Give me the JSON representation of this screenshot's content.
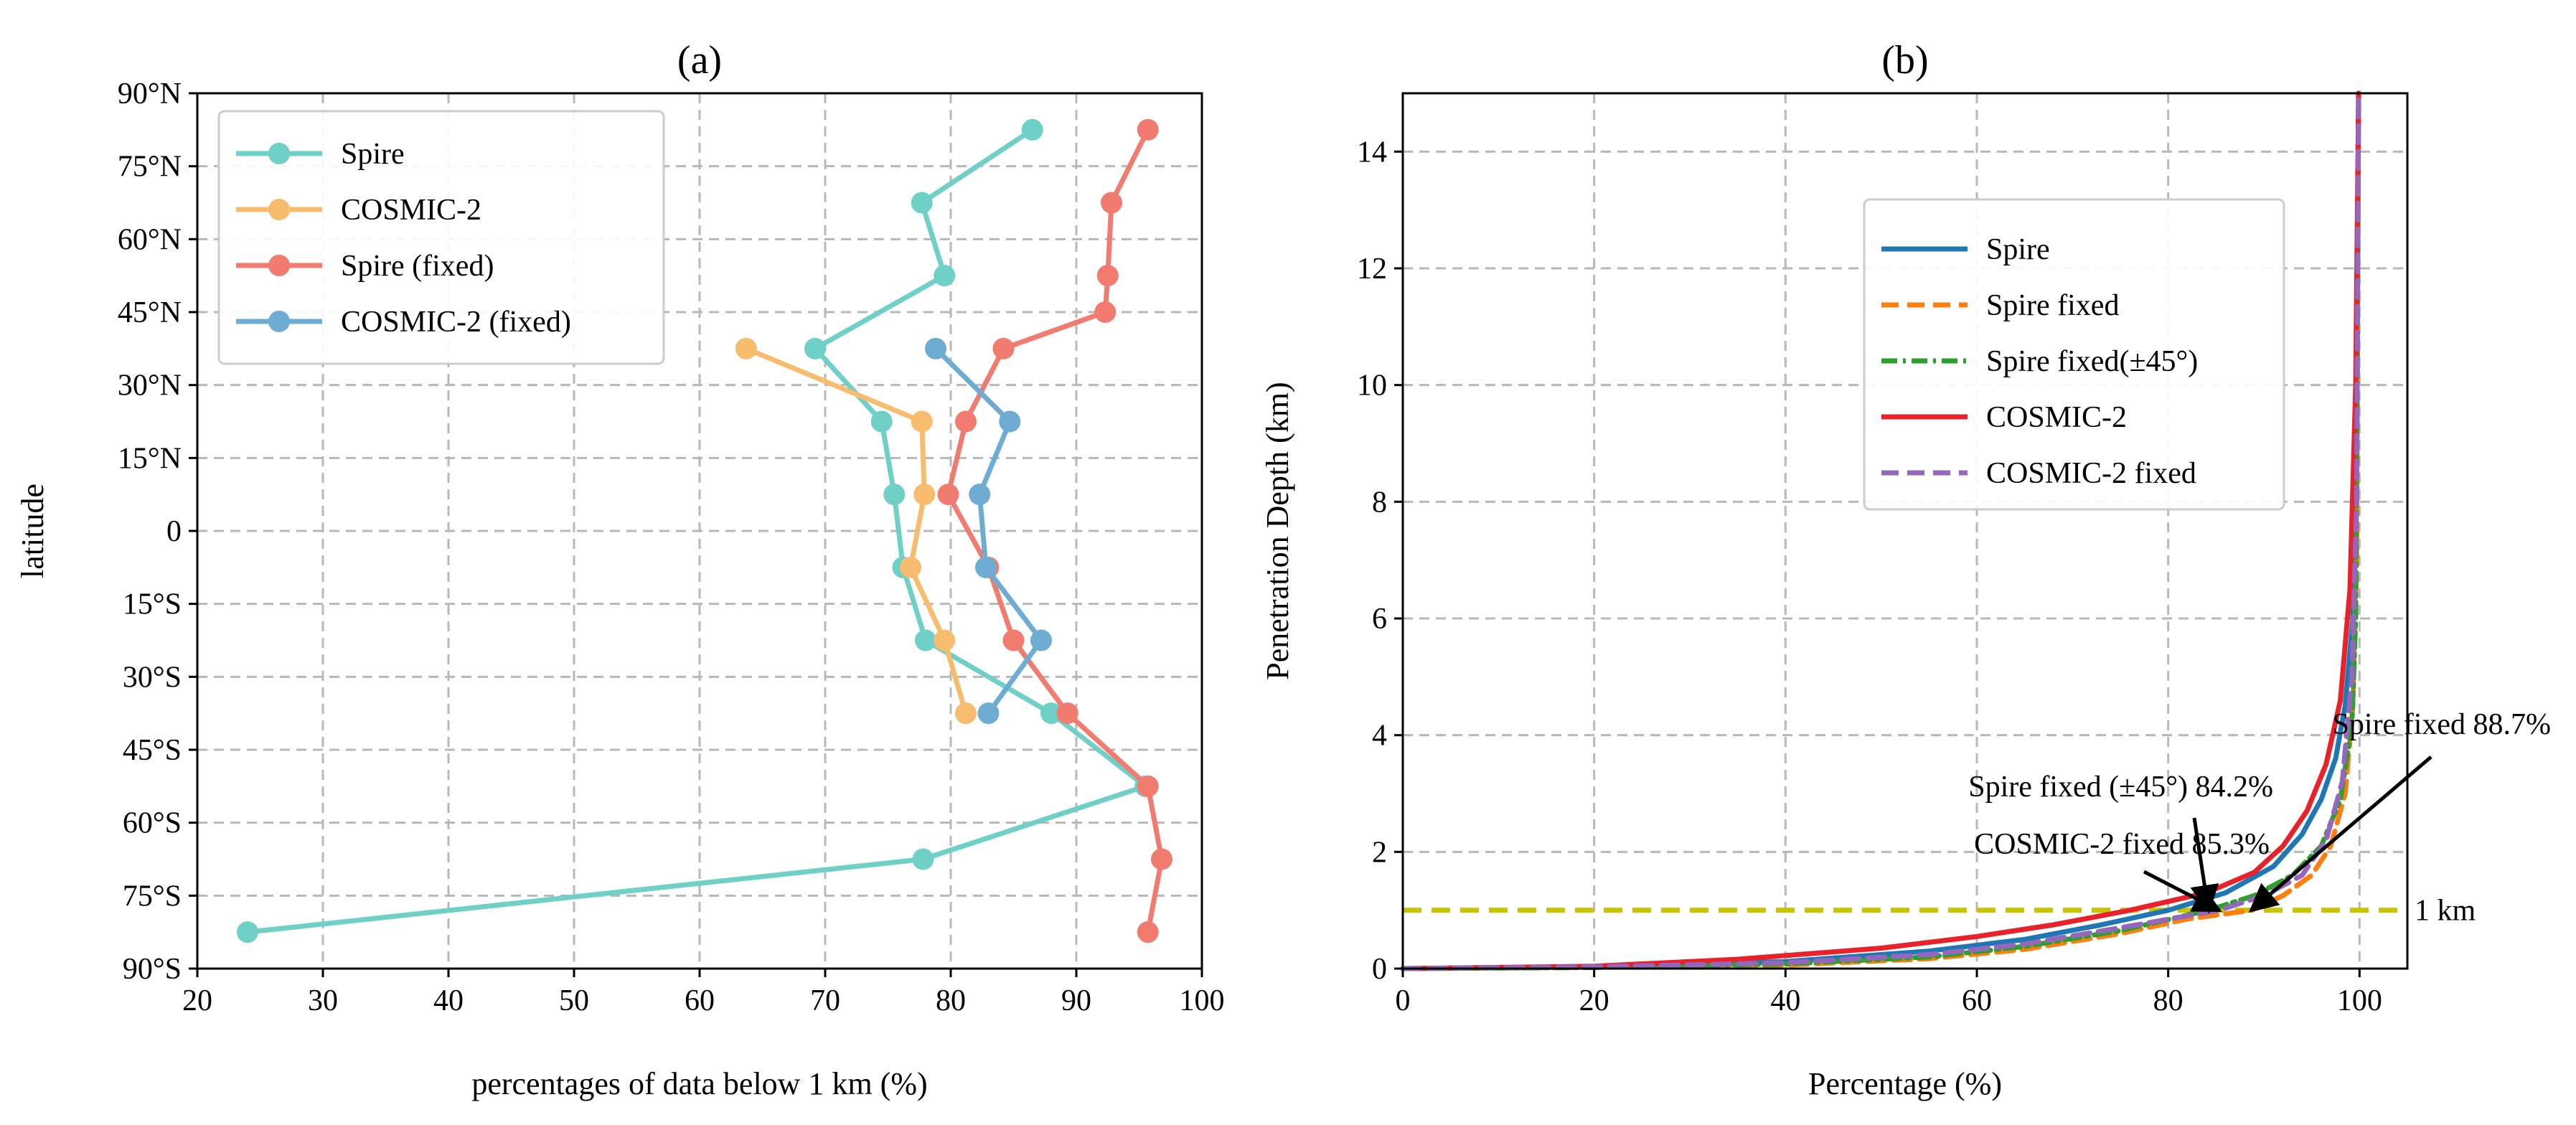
{
  "chart_data": [
    {
      "panel": "(a)",
      "type": "line",
      "title": "(a)",
      "xlabel": "percentages of data below 1 km (%)",
      "ylabel": "latitude",
      "xlim": [
        20,
        100
      ],
      "ylim": [
        -90,
        90
      ],
      "xticks": [
        20,
        30,
        40,
        50,
        60,
        70,
        80,
        90,
        100
      ],
      "yticks": [
        90,
        75,
        60,
        45,
        30,
        15,
        0,
        -15,
        -30,
        -45,
        -60,
        -75,
        -90
      ],
      "ytick_labels": [
        "90°N",
        "75°N",
        "60°N",
        "45°N",
        "30°N",
        "15°N",
        "0",
        "15°S",
        "30°S",
        "45°S",
        "60°S",
        "75°S",
        "90°S"
      ],
      "grid": true,
      "legend": "top-left",
      "series": [
        {
          "name": "Spire",
          "color": "#6fd0c7",
          "points": [
            [
              86.5,
              82.5
            ],
            [
              77.7,
              67.5
            ],
            [
              79.5,
              52.5
            ],
            [
              69.2,
              37.5
            ],
            [
              74.5,
              22.5
            ],
            [
              75.5,
              7.5
            ],
            [
              76.2,
              -7.5
            ],
            [
              78.0,
              -22.5
            ],
            [
              88.0,
              -37.5
            ],
            [
              95.5,
              -52.5
            ],
            [
              77.8,
              -67.5
            ],
            [
              24.0,
              -82.5
            ]
          ]
        },
        {
          "name": "COSMIC-2",
          "color": "#f8bc6e",
          "points": [
            [
              63.7,
              37.5
            ],
            [
              77.7,
              22.5
            ],
            [
              77.9,
              7.5
            ],
            [
              76.8,
              -7.5
            ],
            [
              79.5,
              -22.5
            ],
            [
              81.2,
              -37.5
            ]
          ]
        },
        {
          "name": "Spire (fixed)",
          "color": "#f07b6e",
          "points": [
            [
              95.7,
              82.5
            ],
            [
              92.8,
              67.5
            ],
            [
              92.5,
              52.5
            ],
            [
              92.3,
              45.0
            ],
            [
              84.2,
              37.5
            ],
            [
              81.2,
              22.5
            ],
            [
              79.8,
              7.5
            ],
            [
              83.0,
              -7.5
            ],
            [
              85.0,
              -22.5
            ],
            [
              89.3,
              -37.5
            ],
            [
              95.7,
              -52.5
            ],
            [
              96.8,
              -67.5
            ],
            [
              95.7,
              -82.5
            ]
          ]
        },
        {
          "name": "COSMIC-2 (fixed)",
          "color": "#6eacd3",
          "points": [
            [
              78.8,
              37.5
            ],
            [
              84.7,
              22.5
            ],
            [
              82.3,
              7.5
            ],
            [
              82.8,
              -7.5
            ],
            [
              87.2,
              -22.5
            ],
            [
              83.0,
              -37.5
            ]
          ]
        }
      ]
    },
    {
      "panel": "(b)",
      "type": "line",
      "title": "(b)",
      "xlabel": "Percentage (%)",
      "ylabel": "Penetration Depth (km)",
      "xlim": [
        0,
        105
      ],
      "ylim": [
        0,
        15
      ],
      "xticks": [
        0,
        20,
        40,
        60,
        80,
        100
      ],
      "yticks": [
        0,
        2,
        4,
        6,
        8,
        10,
        12,
        14
      ],
      "grid": true,
      "legend": "upper center",
      "reference_line": {
        "y": 1,
        "label": "1 km",
        "color": "#c8c400"
      },
      "annotations": [
        {
          "text": "Spire fixed 88.7%",
          "point": [
            88.7,
            1.0
          ]
        },
        {
          "text": "Spire fixed (±45°) 84.2%",
          "point": [
            84.2,
            1.0
          ]
        },
        {
          "text": "COSMIC-2 fixed 85.3%",
          "point": [
            85.3,
            1.0
          ]
        }
      ],
      "series": [
        {
          "name": "Spire",
          "color": "#1f77b4",
          "dash": "solid",
          "points": [
            [
              0,
              0
            ],
            [
              20,
              0.03
            ],
            [
              40,
              0.12
            ],
            [
              55,
              0.3
            ],
            [
              65,
              0.5
            ],
            [
              73,
              0.75
            ],
            [
              80,
              1.0
            ],
            [
              86,
              1.3
            ],
            [
              91,
              1.75
            ],
            [
              94,
              2.3
            ],
            [
              96,
              2.9
            ],
            [
              97.5,
              3.6
            ],
            [
              98.5,
              4.5
            ],
            [
              99.3,
              6
            ],
            [
              99.7,
              9
            ],
            [
              99.9,
              15
            ]
          ]
        },
        {
          "name": "Spire fixed",
          "color": "#ff7f0e",
          "dash": "dashed",
          "points": [
            [
              0,
              0
            ],
            [
              20,
              0.02
            ],
            [
              40,
              0.06
            ],
            [
              55,
              0.17
            ],
            [
              65,
              0.33
            ],
            [
              75,
              0.6
            ],
            [
              82,
              0.85
            ],
            [
              88.7,
              1.0
            ],
            [
              92,
              1.25
            ],
            [
              95,
              1.6
            ],
            [
              97,
              2.1
            ],
            [
              98.5,
              3
            ],
            [
              99.3,
              4.5
            ],
            [
              99.7,
              7
            ],
            [
              99.9,
              15
            ]
          ]
        },
        {
          "name": "Spire fixed(±45°)",
          "color": "#2ca02c",
          "dash": "dashdot",
          "points": [
            [
              0,
              0
            ],
            [
              20,
              0.02
            ],
            [
              40,
              0.08
            ],
            [
              55,
              0.2
            ],
            [
              65,
              0.38
            ],
            [
              75,
              0.65
            ],
            [
              84.2,
              1.0
            ],
            [
              89,
              1.25
            ],
            [
              93,
              1.6
            ],
            [
              96,
              2.1
            ],
            [
              98,
              2.9
            ],
            [
              99.2,
              4.2
            ],
            [
              99.6,
              6
            ],
            [
              99.9,
              15
            ]
          ]
        },
        {
          "name": "COSMIC-2",
          "color": "#e8212a",
          "dash": "solid",
          "points": [
            [
              0,
              0
            ],
            [
              20,
              0.04
            ],
            [
              35,
              0.16
            ],
            [
              50,
              0.35
            ],
            [
              60,
              0.55
            ],
            [
              68,
              0.75
            ],
            [
              76,
              1.0
            ],
            [
              84,
              1.3
            ],
            [
              89,
              1.65
            ],
            [
              92,
              2.1
            ],
            [
              94.5,
              2.7
            ],
            [
              96.5,
              3.5
            ],
            [
              98,
              4.6
            ],
            [
              99,
              6.5
            ],
            [
              99.6,
              10
            ],
            [
              99.9,
              15
            ]
          ]
        },
        {
          "name": "COSMIC-2 fixed",
          "color": "#9467bd",
          "dash": "dashed",
          "points": [
            [
              0,
              0
            ],
            [
              20,
              0.03
            ],
            [
              40,
              0.1
            ],
            [
              55,
              0.24
            ],
            [
              65,
              0.42
            ],
            [
              75,
              0.7
            ],
            [
              85.3,
              1.0
            ],
            [
              90,
              1.25
            ],
            [
              94,
              1.6
            ],
            [
              96.5,
              2.2
            ],
            [
              98.2,
              3.2
            ],
            [
              99.2,
              5
            ],
            [
              99.7,
              8
            ],
            [
              99.9,
              15
            ]
          ]
        }
      ]
    }
  ]
}
